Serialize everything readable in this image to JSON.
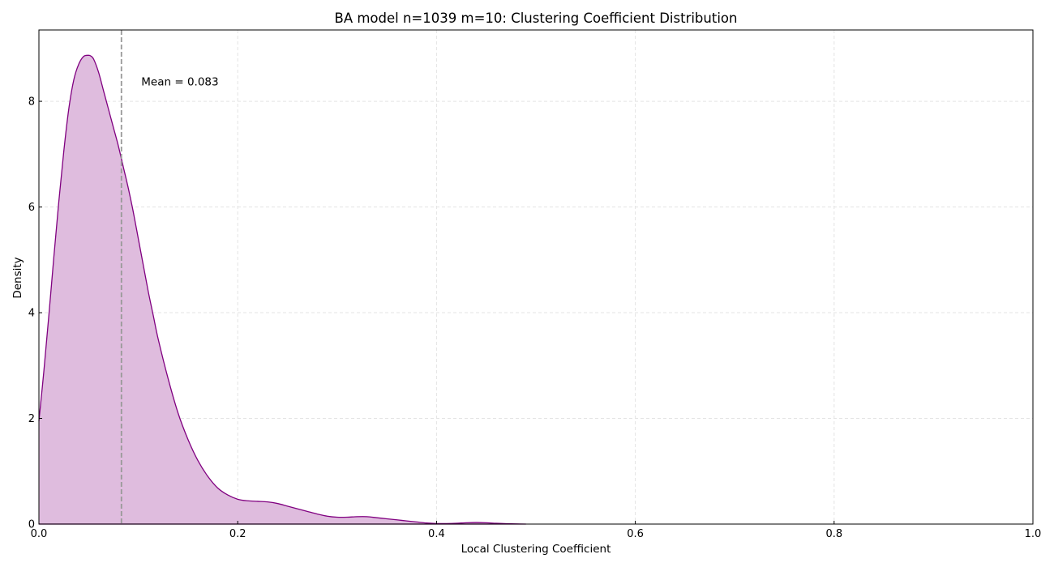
{
  "chart_data": {
    "type": "area",
    "title": "BA model n=1039 m=10: Clustering Coefficient Distribution",
    "xlabel": "Local Clustering Coefficient",
    "ylabel": "Density",
    "xlim": [
      0,
      1
    ],
    "ylim": [
      0,
      9.35
    ],
    "xticks": [
      0,
      0.2,
      0.4,
      0.6,
      0.8,
      1
    ],
    "xtick_labels": [
      "0.0",
      "0.2",
      "0.4",
      "0.6",
      "0.8",
      "1.0"
    ],
    "yticks": [
      0,
      2,
      4,
      6,
      8
    ],
    "ytick_labels": [
      "0",
      "2",
      "4",
      "6",
      "8"
    ],
    "grid": true,
    "legend": "none",
    "series": [
      {
        "x": [
          0.0,
          0.005,
          0.01,
          0.015,
          0.02,
          0.025,
          0.03,
          0.035,
          0.04,
          0.045,
          0.05,
          0.052,
          0.055,
          0.06,
          0.065,
          0.07,
          0.075,
          0.08,
          0.085,
          0.09,
          0.095,
          0.1,
          0.105,
          0.11,
          0.115,
          0.12,
          0.13,
          0.14,
          0.15,
          0.16,
          0.17,
          0.18,
          0.19,
          0.2,
          0.21,
          0.22,
          0.23,
          0.24,
          0.25,
          0.26,
          0.27,
          0.28,
          0.29,
          0.3,
          0.31,
          0.32,
          0.33,
          0.34,
          0.35,
          0.36,
          0.37,
          0.38,
          0.39,
          0.4,
          0.41,
          0.42,
          0.43,
          0.44,
          0.45,
          0.46,
          0.47,
          0.48,
          0.49
        ],
        "y": [
          1.95,
          2.9,
          3.95,
          5.05,
          6.1,
          7.05,
          7.85,
          8.4,
          8.7,
          8.85,
          8.87,
          8.86,
          8.8,
          8.55,
          8.2,
          7.85,
          7.5,
          7.15,
          6.75,
          6.35,
          5.9,
          5.4,
          4.9,
          4.4,
          3.95,
          3.5,
          2.75,
          2.1,
          1.6,
          1.2,
          0.9,
          0.68,
          0.55,
          0.47,
          0.44,
          0.43,
          0.42,
          0.39,
          0.34,
          0.29,
          0.24,
          0.19,
          0.15,
          0.13,
          0.13,
          0.14,
          0.14,
          0.12,
          0.1,
          0.08,
          0.06,
          0.04,
          0.02,
          0.01,
          0.01,
          0.015,
          0.025,
          0.03,
          0.025,
          0.015,
          0.008,
          0.003,
          0.0
        ],
        "line_color": "#800080",
        "fill_color": "#dfbcde"
      }
    ],
    "mean_line": {
      "x": 0.083,
      "color": "#999999"
    },
    "annotation": {
      "text": "Mean = 0.083",
      "x": 0.103,
      "y": 8.3
    },
    "colors": {
      "grid": "#e3e3e3",
      "axes": "#000000"
    }
  }
}
